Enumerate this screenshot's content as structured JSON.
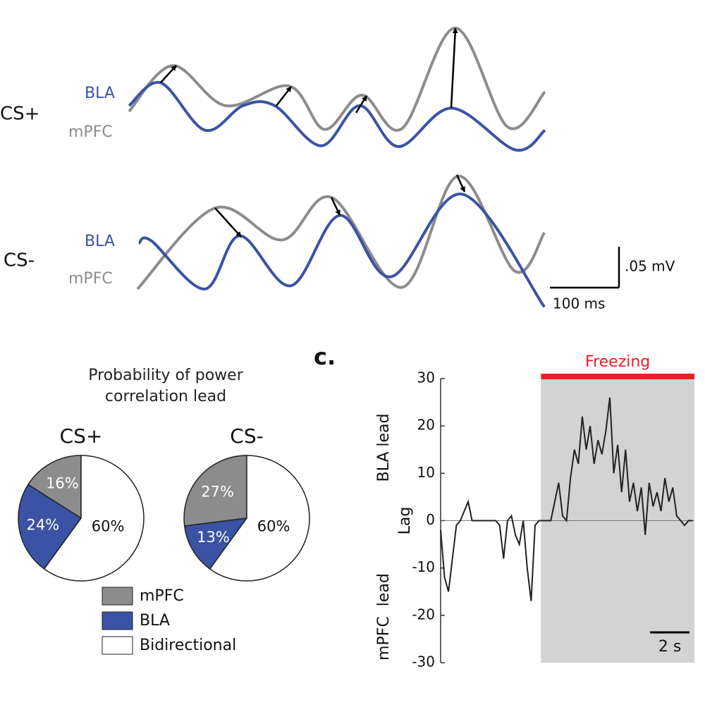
{
  "chart_data": [
    {
      "type": "line",
      "title": "CS+",
      "series": [
        {
          "name": "BLA",
          "color": "#3a53a4",
          "x": [
            0,
            46,
            110,
            165,
            211,
            278,
            334,
            390,
            467,
            559,
            602
          ],
          "values": [
            0.013,
            0.041,
            -0.017,
            0.013,
            0.013,
            -0.036,
            0.013,
            -0.037,
            0.01,
            -0.041,
            -0.017
          ]
        },
        {
          "name": "mPFC",
          "color": "#8c8c8c",
          "x": [
            0,
            63,
            140,
            232,
            283,
            337,
            395,
            472,
            548,
            602
          ],
          "values": [
            0.006,
            0.062,
            0.013,
            0.037,
            -0.016,
            0.026,
            -0.015,
            0.108,
            -0.013,
            0.03
          ]
        }
      ]
    },
    {
      "type": "line",
      "title": "CS-",
      "series": [
        {
          "name": "BLA",
          "color": "#3a53a4",
          "x": [
            2,
            20,
            97,
            148,
            222,
            293,
            367,
            470,
            589
          ],
          "values": [
            0,
            0.003,
            -0.056,
            0.009,
            -0.052,
            0.034,
            -0.041,
            0.06,
            -0.078
          ]
        },
        {
          "name": "mPFC",
          "color": "#8c8c8c",
          "x": [
            0,
            112,
            209,
            281,
            383,
            464,
            546,
            589
          ],
          "values": [
            -0.056,
            0.043,
            0.004,
            0.056,
            -0.054,
            0.082,
            -0.034,
            0.013
          ]
        }
      ],
      "scale_bar": {
        "x": {
          "value": 100,
          "label": "100 ms"
        },
        "y": {
          "value": 0.05,
          "label": ".05 mV"
        }
      }
    },
    {
      "type": "pie",
      "title": "Probability of power correlation lead",
      "categories": [
        "mPFC",
        "BLA",
        "Bidirectional"
      ],
      "colors": [
        "#8c8c8c",
        "#3a53a4",
        "#ffffff"
      ],
      "pies": [
        {
          "title": "CS+",
          "values": [
            16,
            24,
            60
          ],
          "value_labels": [
            "16%",
            "24%",
            "60%"
          ]
        },
        {
          "title": "CS-",
          "values": [
            27,
            13,
            60
          ],
          "value_labels": [
            "27%",
            "13%",
            "60%"
          ]
        }
      ]
    },
    {
      "type": "line",
      "panel_label": "c.",
      "ylabel": "Lag",
      "annotations": [
        "BLA lead",
        "mPFC  lead"
      ],
      "xlim": [
        0,
        12.9
      ],
      "ylim": [
        -30,
        30
      ],
      "yticks": [
        -30,
        -20,
        -10,
        0,
        10,
        20,
        30
      ],
      "freezing": {
        "label": "Freezing",
        "start": 5.1,
        "end": 12.9,
        "color": "#e8202a",
        "shade": "#d3d3d3"
      },
      "scale_bar": {
        "x": {
          "value": 2,
          "label": "2 s"
        }
      },
      "series": [
        {
          "color": "#222222",
          "x": [
            0,
            0.2,
            0.4,
            0.6,
            0.8,
            1.0,
            1.2,
            1.4,
            1.6,
            1.8,
            2.0,
            2.2,
            2.4,
            2.6,
            2.8,
            3.0,
            3.2,
            3.4,
            3.6,
            3.8,
            4.0,
            4.2,
            4.4,
            4.6,
            4.8,
            5.0,
            5.2,
            5.4,
            5.6,
            5.8,
            6.0,
            6.2,
            6.4,
            6.6,
            6.8,
            7.0,
            7.2,
            7.4,
            7.6,
            7.8,
            8.0,
            8.2,
            8.4,
            8.6,
            8.8,
            9.0,
            9.2,
            9.4,
            9.6,
            9.8,
            10.0,
            10.2,
            10.4,
            10.6,
            10.8,
            11.0,
            11.2,
            11.4,
            11.6,
            11.8,
            12.0,
            12.2,
            12.4,
            12.6,
            12.8
          ],
          "values": [
            -2,
            -12,
            -15,
            -8,
            -1,
            0,
            2,
            4,
            0,
            0,
            0,
            0,
            0,
            0,
            0,
            -1,
            -8,
            0,
            1,
            -3,
            -5,
            0,
            -10,
            -17,
            -1,
            0,
            0,
            0,
            0,
            4,
            8,
            1,
            0,
            9,
            15,
            12,
            22,
            15,
            20,
            12,
            17,
            14,
            19,
            26,
            10,
            16,
            6,
            15,
            4,
            8,
            2,
            7,
            -3,
            8,
            3,
            6,
            2,
            9,
            4,
            7,
            1,
            0,
            -1,
            0,
            0
          ]
        }
      ]
    }
  ]
}
